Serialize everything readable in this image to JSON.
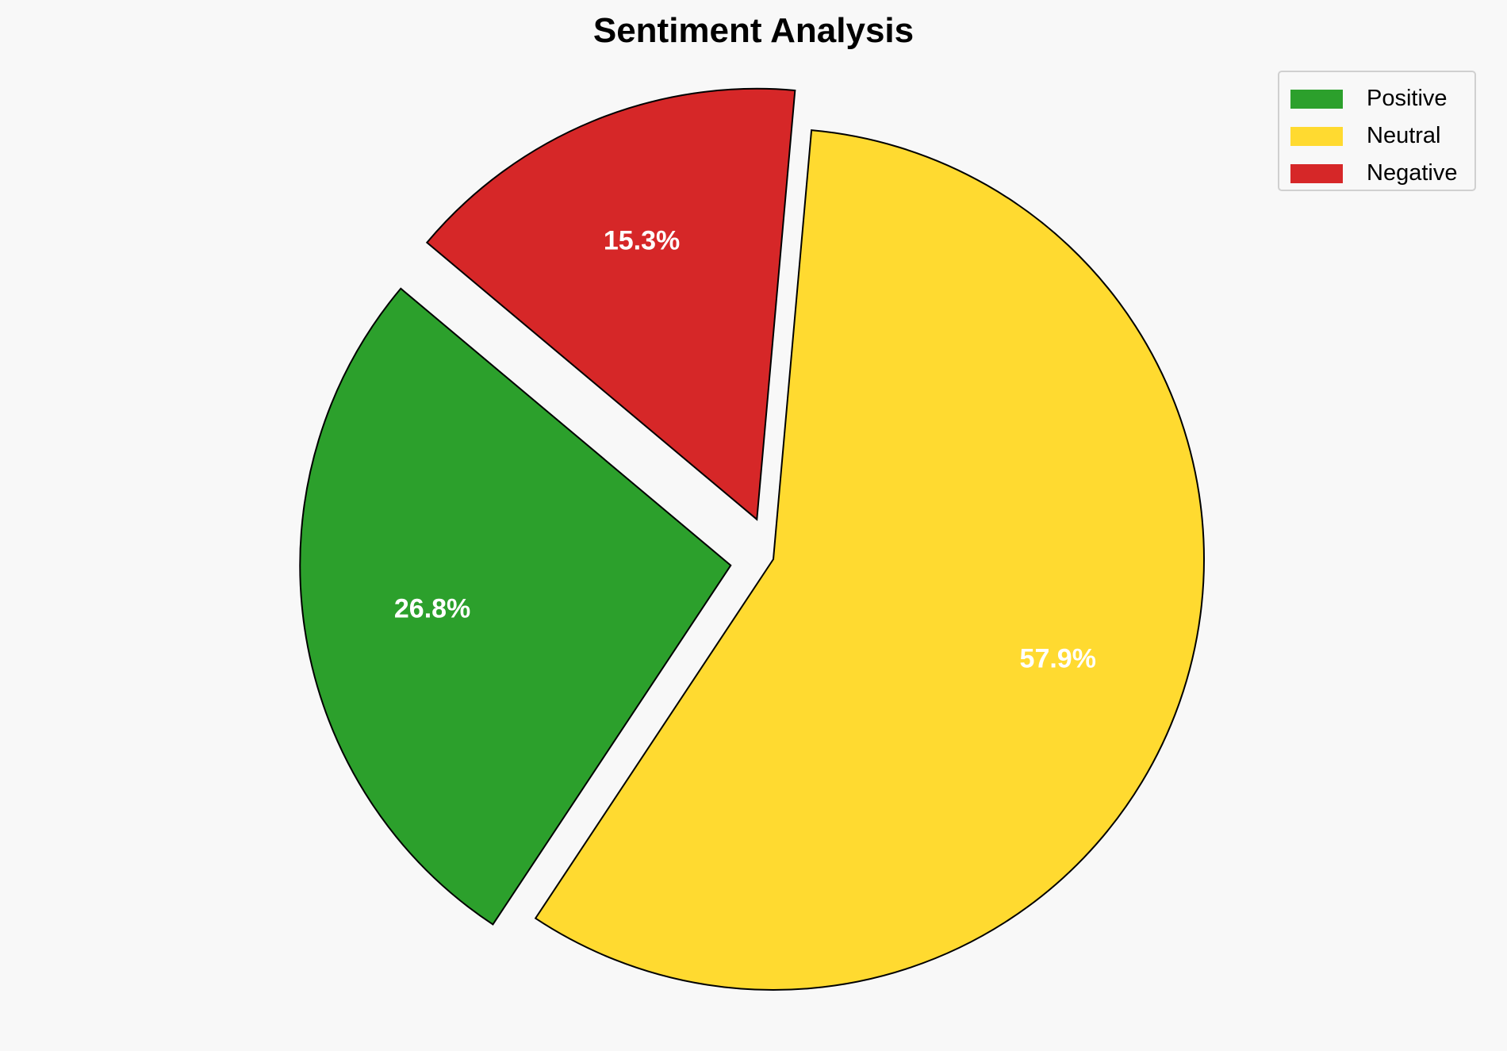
{
  "chart_data": {
    "type": "pie",
    "title": "Sentiment Analysis",
    "labels": [
      "Positive",
      "Neutral",
      "Negative"
    ],
    "values": [
      26.8,
      57.9,
      15.3
    ],
    "percent_labels": [
      "26.8%",
      "57.9%",
      "15.3%"
    ],
    "colors": [
      "#2ca02c",
      "#ffda30",
      "#d62728"
    ],
    "explode": [
      0.1,
      0,
      0.1
    ],
    "start_angle": 140,
    "edge_color": "#000000",
    "label_color": "#ffffff",
    "legend_position": "top-right"
  }
}
